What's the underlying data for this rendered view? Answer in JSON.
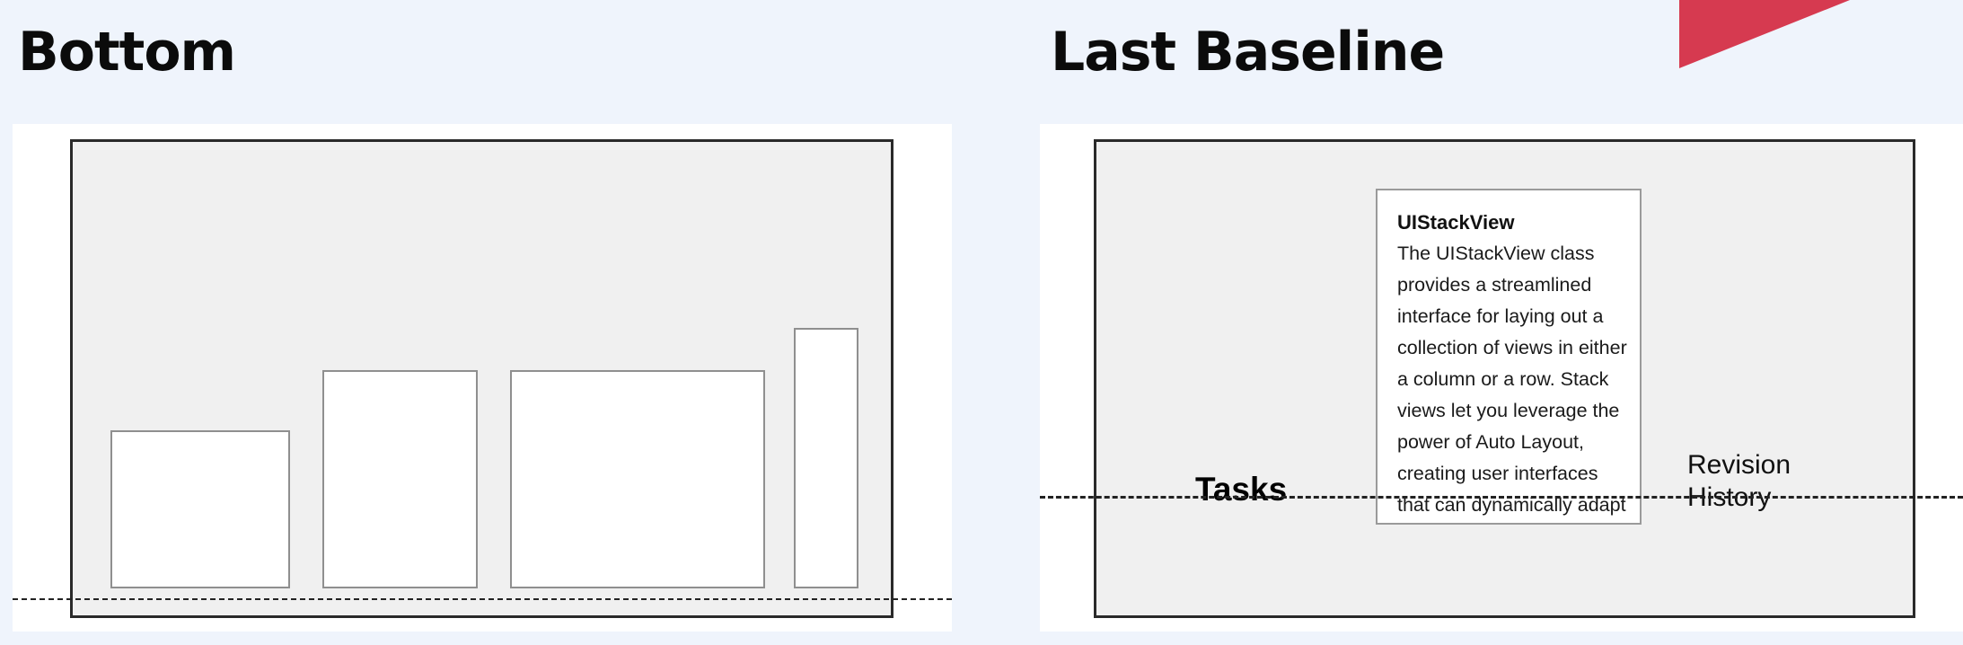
{
  "panels": {
    "left": {
      "heading": "Bottom"
    },
    "right": {
      "heading": "Last Baseline",
      "left_label": "Tasks",
      "right_label": "Revision History",
      "doc_title": "UIStackView",
      "doc_body": "The UIStackView class provides a streamlined interface for laying out a collection of views in either a column or a row. Stack views let you leverage the power of Auto Layout, creating user interfaces that can dynamically adapt to the device's orientation."
    }
  },
  "colors": {
    "page_background": "#eff4fc",
    "panel_background": "#ffffff",
    "frame_fill": "#f0f0f0",
    "frame_border": "#2a2a2a",
    "box_border": "#8f8f8f",
    "accent_flag": "#d63a50"
  },
  "decorations": [
    "corner-flag",
    "dashed-baseline-guide"
  ]
}
